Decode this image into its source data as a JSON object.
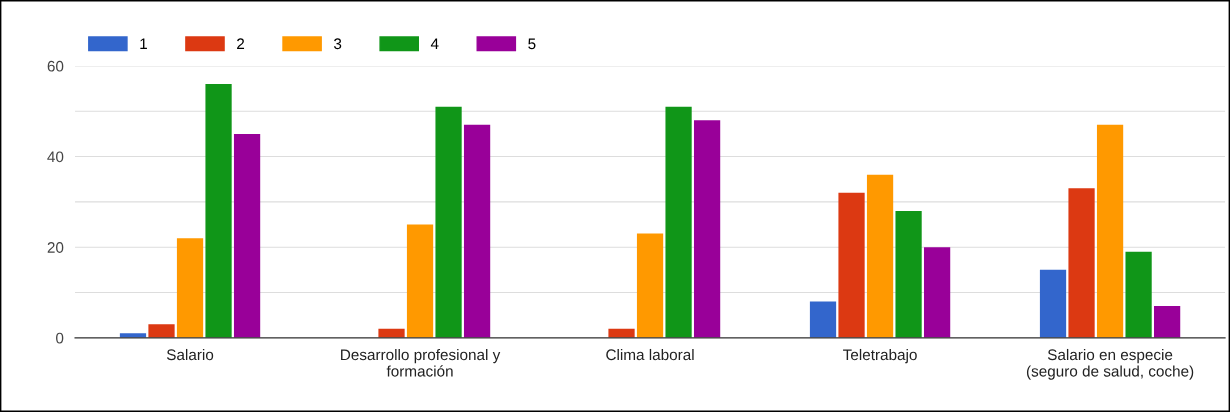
{
  "chart_data": {
    "type": "bar",
    "categories": [
      "Salario",
      "Desarrollo profesional y formación",
      "Clima laboral",
      "Teletrabajo",
      "Salario en especie (seguro de salud, coche)"
    ],
    "series": [
      {
        "name": "1",
        "color": "#3366cc",
        "values": [
          1,
          0,
          0,
          8,
          15
        ]
      },
      {
        "name": "2",
        "color": "#dc3912",
        "values": [
          3,
          2,
          2,
          32,
          33
        ]
      },
      {
        "name": "3",
        "color": "#ff9900",
        "values": [
          22,
          25,
          23,
          36,
          47
        ]
      },
      {
        "name": "4",
        "color": "#109618",
        "values": [
          56,
          51,
          51,
          28,
          19
        ]
      },
      {
        "name": "5",
        "color": "#990099",
        "values": [
          45,
          47,
          48,
          20,
          7
        ]
      }
    ],
    "ylim": [
      0,
      60
    ],
    "yticks": [
      0,
      {
        "value": 10,
        "label": null
      },
      20,
      {
        "value": 30,
        "label": null
      },
      40,
      {
        "value": 50,
        "label": null
      },
      60
    ],
    "grid": "y",
    "legend": "top left"
  }
}
